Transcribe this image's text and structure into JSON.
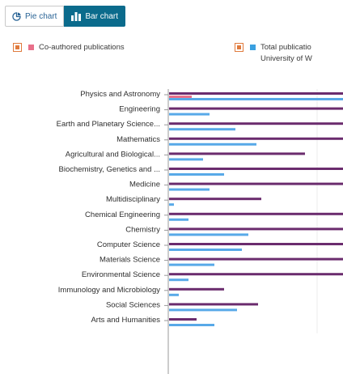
{
  "tabs": {
    "pie_label": "Pie chart",
    "bar_label": "Bar chart"
  },
  "legend": {
    "coauthored": {
      "label": "Co-authored publications",
      "color": "#e8708a"
    },
    "total": {
      "label": "Total publicatio",
      "sublabel": "University of W",
      "color": "#3aa0e0"
    }
  },
  "colors": {
    "purple": "#6b2c6e",
    "pink": "#e8708a",
    "blue": "#58a9e8",
    "axis": "#9a9a9a"
  },
  "chart_data": {
    "type": "bar",
    "orientation": "horizontal",
    "categories": [
      "Physics and Astronomy",
      "Engineering",
      "Earth and Planetary Science...",
      "Mathematics",
      "Agricultural and Biological...",
      "Biochemistry, Genetics and ...",
      "Medicine",
      "Multidisciplinary",
      "Chemical Engineering",
      "Chemistry",
      "Computer Science",
      "Materials Science",
      "Environmental Science",
      "Immunology and Microbiology",
      "Social Sciences",
      "Arts and Humanities"
    ],
    "series": [
      {
        "name": "",
        "color": "#6b2c6e",
        "values": [
          110,
          108,
          110,
          108,
          84,
          110,
          110,
          57,
          110,
          110,
          110,
          110,
          110,
          34,
          55,
          17
        ]
      },
      {
        "name": "Co-authored publications",
        "color": "#e8708a",
        "values": [
          14,
          0,
          0,
          0,
          0,
          0,
          0,
          0,
          0,
          0,
          0,
          0,
          0,
          0,
          0,
          0
        ]
      },
      {
        "name": "Total publicatio",
        "color": "#58a9e8",
        "values": [
          110,
          25,
          41,
          54,
          21,
          34,
          25,
          3,
          12,
          49,
          45,
          28,
          12,
          6,
          42,
          28
        ]
      }
    ]
  }
}
